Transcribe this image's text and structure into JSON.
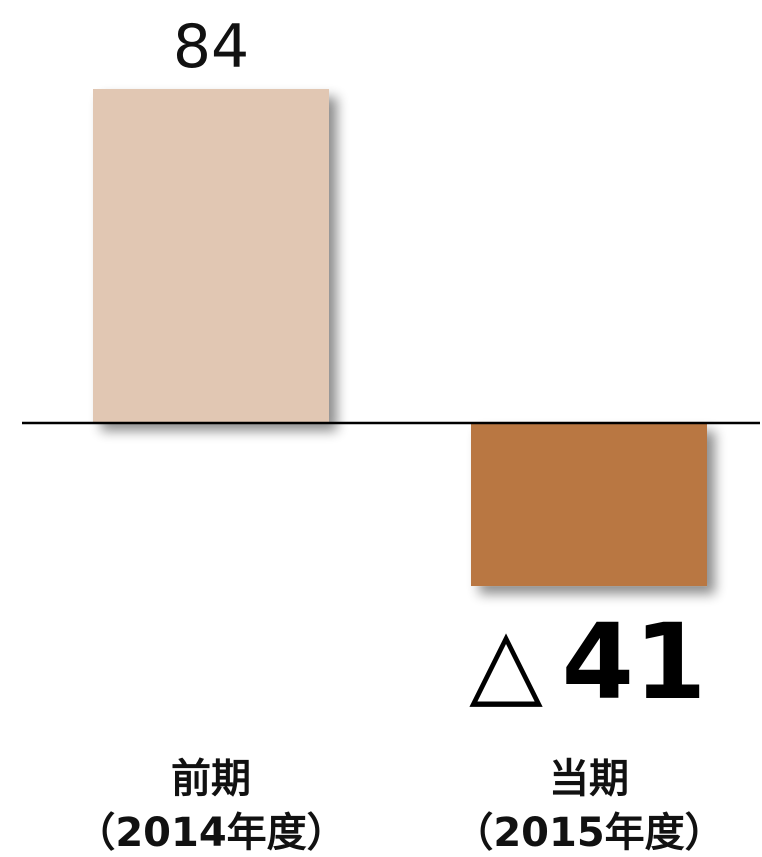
{
  "chart_data": {
    "type": "bar",
    "categories": [
      {
        "name": "前期",
        "period": "（2014年度）"
      },
      {
        "name": "当期",
        "period": "（2015年度）"
      }
    ],
    "values": [
      84,
      -41
    ],
    "value_labels": [
      "84",
      "41"
    ],
    "negative_prefix": "△",
    "colors": [
      "#e1c7b3",
      "#b97743"
    ],
    "baseline_color": "#000000"
  }
}
